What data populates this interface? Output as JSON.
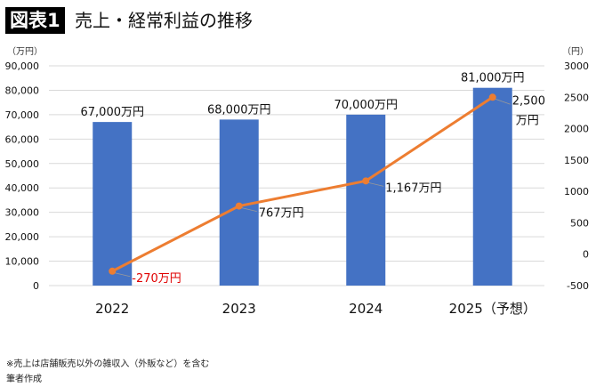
{
  "header": {
    "badge": "図表1",
    "title": "売上・経常利益の推移"
  },
  "footnotes": [
    "※売上は店舗販売以外の雑収入（外販など）を含む",
    "筆者作成"
  ],
  "chart_data": {
    "type": "bar+line",
    "categories": [
      "2022",
      "2023",
      "2024",
      "2025（予想）"
    ],
    "left_axis": {
      "unit": "（万円）",
      "range": [
        0,
        90000
      ],
      "ticks": [
        "0",
        "10,000",
        "20,000",
        "30,000",
        "40,000",
        "50,000",
        "60,000",
        "70,000",
        "80,000",
        "90,000"
      ]
    },
    "right_axis": {
      "unit": "（円）",
      "range": [
        -500,
        3000
      ],
      "ticks": [
        "-500",
        "0",
        "500",
        "1000",
        "1500",
        "2000",
        "2500",
        "3000"
      ]
    },
    "grid": true,
    "legend_position": "bottom",
    "series": [
      {
        "name": "売上",
        "type": "bar",
        "axis": "left",
        "color": "#4472C4",
        "values": [
          67000,
          68000,
          70000,
          81000
        ],
        "labels": [
          "67,000万円",
          "68,000万円",
          "70,000万円",
          "81,000万円"
        ]
      },
      {
        "name": "経常利益",
        "type": "line",
        "axis": "right",
        "color": "#ED7D31",
        "values": [
          -270,
          767,
          1167,
          2500
        ],
        "labels": [
          "-270万円",
          "767万円",
          "1,167万円",
          "2,500\n万円"
        ],
        "negative_label_color": "#E00000"
      }
    ]
  }
}
